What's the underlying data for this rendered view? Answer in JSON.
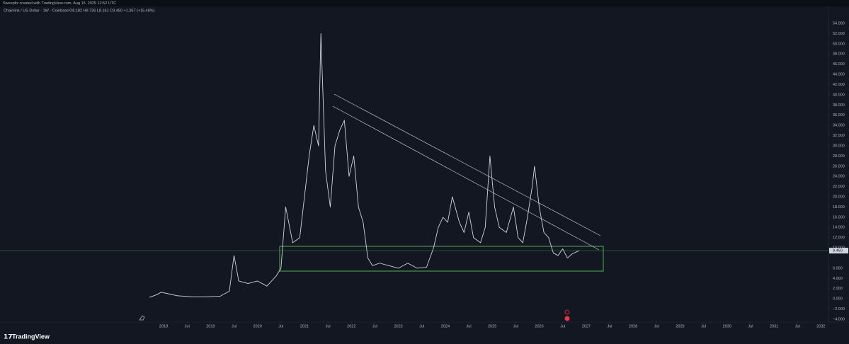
{
  "header": {
    "attribution": "Sweeplix created with TradingView.com, Aug 15, 2025 12:52 UTC",
    "symbol": "Chainlink / US Dollar · 1W · Coinbase",
    "ohlc": "O8.182 H9.736 L8.161 C9.450 +1.267 (+15.48%)"
  },
  "footer": {
    "brand": "TradingView"
  },
  "chart_data": {
    "type": "line",
    "grid": false,
    "x": [
      2017.7,
      2017.85,
      2017.95,
      2018.1,
      2018.3,
      2018.6,
      2018.9,
      2019.2,
      2019.4,
      2019.5,
      2019.6,
      2019.8,
      2020.0,
      2020.2,
      2020.4,
      2020.5,
      2020.6,
      2020.75,
      2020.9,
      2021.0,
      2021.1,
      2021.2,
      2021.3,
      2021.35,
      2021.45,
      2021.55,
      2021.65,
      2021.75,
      2021.85,
      2021.95,
      2022.05,
      2022.15,
      2022.25,
      2022.35,
      2022.45,
      2022.6,
      2022.8,
      2023.0,
      2023.2,
      2023.4,
      2023.6,
      2023.75,
      2023.85,
      2023.95,
      2024.05,
      2024.15,
      2024.3,
      2024.4,
      2024.5,
      2024.6,
      2024.75,
      2024.85,
      2024.95,
      2025.05,
      2025.15,
      2025.3,
      2025.45,
      2025.55,
      2025.65,
      2025.75,
      2025.85,
      2025.9,
      2026.0,
      2026.1,
      2026.2,
      2026.3,
      2026.4,
      2026.5,
      2026.6,
      2026.7,
      2026.85
    ],
    "series": [
      {
        "color": "#d1d4dc",
        "values": [
          0.3,
          0.8,
          1.3,
          1.0,
          0.6,
          0.4,
          0.4,
          0.5,
          1.5,
          8.5,
          3.5,
          3.0,
          3.5,
          2.5,
          4.5,
          6,
          18,
          11,
          12,
          20,
          28,
          34,
          30,
          52,
          25,
          18,
          30,
          33,
          35,
          24,
          28,
          18,
          15,
          8,
          6.5,
          7,
          6.5,
          6,
          7,
          6,
          6.2,
          10,
          14,
          16,
          15,
          20,
          15,
          13,
          17,
          12,
          11,
          14,
          28,
          18,
          14,
          13,
          18,
          12,
          11,
          16,
          22,
          26,
          18,
          13,
          12,
          9,
          8.5,
          9.8,
          8,
          8.8,
          9.45
        ]
      }
    ],
    "last_price": {
      "value": 9.45,
      "label": "9.450"
    },
    "xlim": [
      2014.516,
      2032.16
    ],
    "xticks": [
      {
        "value": 2018,
        "label": "2018"
      },
      {
        "value": 2018.5,
        "label": "Jul"
      },
      {
        "value": 2019,
        "label": "2019"
      },
      {
        "value": 2019.5,
        "label": "Jul"
      },
      {
        "value": 2020,
        "label": "2020"
      },
      {
        "value": 2020.5,
        "label": "Jul"
      },
      {
        "value": 2021,
        "label": "2021"
      },
      {
        "value": 2021.5,
        "label": "Jul"
      },
      {
        "value": 2022,
        "label": "2022"
      },
      {
        "value": 2022.5,
        "label": "Jul"
      },
      {
        "value": 2023,
        "label": "2023"
      },
      {
        "value": 2023.5,
        "label": "Jul"
      },
      {
        "value": 2024,
        "label": "2024"
      },
      {
        "value": 2024.5,
        "label": "Jul"
      },
      {
        "value": 2025,
        "label": "2025"
      },
      {
        "value": 2025.5,
        "label": "Jul"
      },
      {
        "value": 2026,
        "label": "2026"
      },
      {
        "value": 2026.5,
        "label": "Jul"
      },
      {
        "value": 2027,
        "label": "2027"
      },
      {
        "value": 2027.5,
        "label": "Jul"
      },
      {
        "value": 2028,
        "label": "2028"
      },
      {
        "value": 2028.5,
        "label": "Jul"
      },
      {
        "value": 2029,
        "label": "2029"
      },
      {
        "value": 2029.5,
        "label": "Jul"
      },
      {
        "value": 2030,
        "label": "2030"
      },
      {
        "value": 2030.5,
        "label": "Jul"
      },
      {
        "value": 2031,
        "label": "2031"
      },
      {
        "value": 2031.5,
        "label": "Jul"
      },
      {
        "value": 2032,
        "label": "2032"
      }
    ],
    "ylim": [
      -4.55,
      55.8
    ],
    "yticks": [
      {
        "value": 54,
        "label": "54.000"
      },
      {
        "value": 52,
        "label": "52.000"
      },
      {
        "value": 50,
        "label": "50.000"
      },
      {
        "value": 48,
        "label": "48.000"
      },
      {
        "value": 46,
        "label": "46.000"
      },
      {
        "value": 44,
        "label": "44.000"
      },
      {
        "value": 42,
        "label": "42.000"
      },
      {
        "value": 40,
        "label": "40.000"
      },
      {
        "value": 38,
        "label": "38.000"
      },
      {
        "value": 36,
        "label": "36.000"
      },
      {
        "value": 34,
        "label": "34.000"
      },
      {
        "value": 32,
        "label": "32.000"
      },
      {
        "value": 30,
        "label": "30.000"
      },
      {
        "value": 28,
        "label": "28.000"
      },
      {
        "value": 26,
        "label": "26.000"
      },
      {
        "value": 24,
        "label": "24.000"
      },
      {
        "value": 22,
        "label": "22.000"
      },
      {
        "value": 20,
        "label": "20.000"
      },
      {
        "value": 18,
        "label": "18.000"
      },
      {
        "value": 16,
        "label": "16.000"
      },
      {
        "value": 14,
        "label": "14.000"
      },
      {
        "value": 12,
        "label": "12.000"
      },
      {
        "value": 10,
        "label": "10.000"
      },
      {
        "value": 6,
        "label": "6.000"
      },
      {
        "value": 4,
        "label": "4.000"
      },
      {
        "value": 2,
        "label": "2.000"
      },
      {
        "value": 0,
        "label": "0.000"
      },
      {
        "value": -2,
        "label": "−2.000"
      },
      {
        "value": -4,
        "label": "−4.000"
      }
    ]
  }
}
